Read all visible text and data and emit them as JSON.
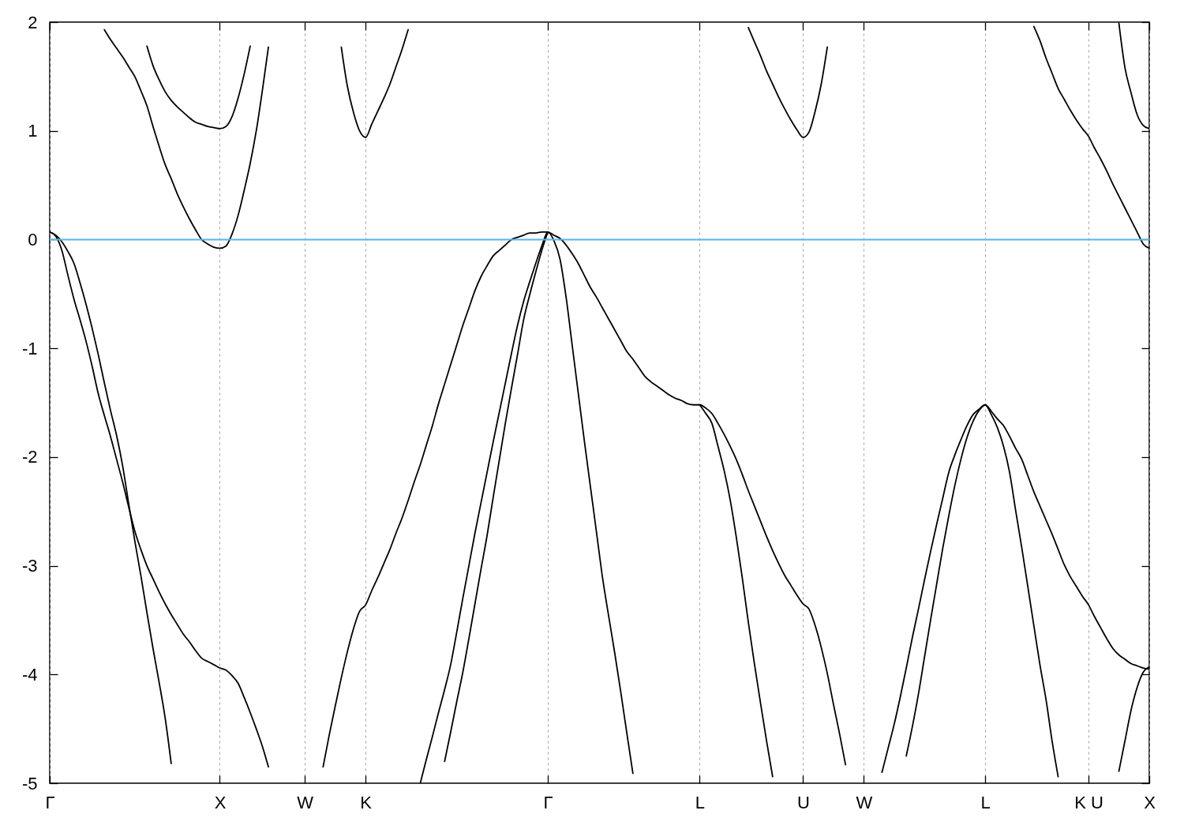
{
  "chart_data": {
    "type": "line",
    "categories": [
      "Γ",
      null,
      null,
      null,
      null,
      null,
      null,
      null,
      null,
      null,
      null,
      null,
      null,
      null,
      null,
      null,
      null,
      null,
      null,
      null,
      null,
      null,
      null,
      null,
      null,
      null,
      null,
      null,
      "X",
      null,
      null,
      null,
      null,
      null,
      null,
      null,
      null,
      null,
      null,
      null,
      null,
      null,
      "W",
      null,
      null,
      null,
      null,
      null,
      null,
      null,
      null,
      null,
      "K",
      null,
      null,
      null,
      null,
      null,
      null,
      null,
      null,
      null,
      null,
      null,
      null,
      null,
      null,
      null,
      null,
      null,
      null,
      null,
      null,
      null,
      null,
      null,
      null,
      null,
      null,
      null,
      null,
      null,
      "Γ",
      null,
      null,
      null,
      null,
      null,
      null,
      null,
      null,
      null,
      null,
      null,
      null,
      null,
      null,
      null,
      null,
      null,
      null,
      null,
      null,
      null,
      null,
      null,
      null,
      "L",
      null,
      null,
      null,
      null,
      null,
      null,
      null,
      null,
      null,
      null,
      null,
      null,
      null,
      null,
      null,
      null,
      "U",
      null,
      null,
      null,
      null,
      null,
      null,
      null,
      null,
      null,
      "W",
      null,
      null,
      null,
      null,
      null,
      null,
      null,
      null,
      null,
      null,
      null,
      null,
      null,
      null,
      null,
      null,
      null,
      null,
      null,
      "L",
      null,
      null,
      null,
      null,
      null,
      null,
      null,
      null,
      null,
      null,
      null,
      null,
      null,
      null,
      null,
      null,
      "K U",
      null,
      null,
      null,
      null,
      null,
      null,
      null,
      null,
      null,
      "X"
    ],
    "ylim": [
      -5,
      2
    ],
    "yticks": [
      -5,
      -4,
      -3,
      -2,
      -1,
      0,
      1,
      2
    ],
    "grid": "x",
    "ref_lines": [
      {
        "axis": "y",
        "value": 0,
        "color": "#56b4e9"
      }
    ],
    "series": [
      {
        "color": "#000000",
        "values": [
          null,
          null,
          null,
          null,
          null,
          null,
          null,
          null,
          null,
          1.93,
          1.84,
          1.76,
          1.68,
          1.59,
          1.5,
          1.37,
          1.23,
          1.04,
          0.86,
          0.69,
          0.56,
          0.42,
          0.3,
          0.19,
          0.09,
          0.0,
          -0.04,
          -0.07,
          -0.08,
          -0.06,
          0.05,
          0.22,
          0.45,
          0.7,
          1.0,
          1.37,
          1.77,
          null,
          null,
          null,
          null,
          null,
          null,
          null,
          null,
          null,
          null,
          null,
          1.77,
          1.41,
          1.17,
          1.0,
          0.94,
          1.06,
          1.18,
          1.3,
          1.43,
          1.59,
          1.75,
          1.93,
          null,
          null,
          null,
          null,
          null,
          null,
          null,
          null,
          null,
          null,
          null,
          null,
          null,
          null,
          null,
          null,
          null,
          null,
          null,
          null,
          null,
          null,
          null,
          null,
          null,
          null,
          null,
          null,
          null,
          null,
          null,
          null,
          null,
          null,
          null,
          null,
          null,
          null,
          null,
          null,
          null,
          null,
          null,
          null,
          null,
          null,
          null,
          null,
          null,
          null,
          null,
          null,
          null,
          null,
          null,
          1.95,
          1.82,
          1.69,
          1.55,
          1.43,
          1.31,
          1.2,
          1.1,
          1.01,
          0.94,
          0.99,
          1.18,
          1.43,
          1.77,
          null,
          null,
          null,
          null,
          null,
          null,
          null,
          null,
          null,
          null,
          null,
          null,
          null,
          null,
          null,
          null,
          null,
          null,
          null,
          null,
          null,
          null,
          null,
          null,
          null,
          null,
          null,
          null,
          null,
          null,
          null,
          null,
          null,
          1.96,
          1.83,
          1.67,
          1.53,
          1.39,
          1.29,
          1.19,
          1.1,
          1.02,
          0.95,
          0.84,
          0.74,
          0.63,
          0.51,
          0.4,
          0.29,
          0.18,
          0.07,
          -0.04,
          -0.08
        ]
      },
      {
        "color": "#000000",
        "values": [
          null,
          null,
          null,
          null,
          null,
          null,
          null,
          null,
          null,
          null,
          null,
          null,
          null,
          null,
          null,
          null,
          1.78,
          1.6,
          1.47,
          1.36,
          1.28,
          1.22,
          1.17,
          1.12,
          1.08,
          1.06,
          1.04,
          1.03,
          1.02,
          1.04,
          1.13,
          1.3,
          1.52,
          1.78,
          null,
          null,
          null,
          null,
          null,
          null,
          null,
          null,
          null,
          null,
          null,
          null,
          null,
          null,
          null,
          null,
          null,
          null,
          null,
          null,
          null,
          null,
          null,
          null,
          null,
          null,
          null,
          null,
          null,
          null,
          null,
          null,
          null,
          null,
          null,
          null,
          null,
          null,
          null,
          null,
          null,
          null,
          null,
          null,
          null,
          null,
          null,
          null,
          null,
          null,
          null,
          null,
          null,
          null,
          null,
          null,
          null,
          null,
          null,
          null,
          null,
          null,
          null,
          null,
          null,
          null,
          null,
          null,
          null,
          null,
          null,
          null,
          null,
          null,
          null,
          null,
          null,
          null,
          null,
          null,
          null,
          null,
          null,
          null,
          null,
          null,
          null,
          null,
          null,
          null,
          null,
          null,
          null,
          null,
          null,
          null,
          null,
          null,
          null,
          null,
          null,
          null,
          null,
          null,
          null,
          null,
          null,
          null,
          null,
          null,
          null,
          null,
          null,
          null,
          null,
          null,
          null,
          null,
          null,
          null,
          null,
          null,
          null,
          null,
          null,
          null,
          null,
          null,
          null,
          null,
          null,
          null,
          null,
          null,
          null,
          null,
          null,
          null,
          null,
          null,
          null,
          null,
          null,
          null,
          null,
          null,
          null,
          null
        ]
      },
      {
        "color": "#000000",
        "values": [
          0.07,
          0.03,
          -0.1,
          -0.33,
          -0.55,
          -0.74,
          -0.94,
          -1.17,
          -1.42,
          -1.62,
          -1.81,
          -2.02,
          -2.23,
          -2.46,
          -2.68,
          -2.85,
          -3.0,
          -3.12,
          -3.24,
          -3.35,
          -3.45,
          -3.54,
          -3.63,
          -3.7,
          -3.78,
          -3.85,
          -3.88,
          -3.91,
          -3.94,
          -3.96,
          -4.01,
          -4.08,
          -4.21,
          -4.35,
          -4.5,
          -4.66,
          -4.85,
          null,
          null,
          null,
          null,
          null,
          null,
          null,
          null,
          -4.85,
          -4.56,
          -4.29,
          -4.03,
          -3.79,
          -3.58,
          -3.42,
          -3.36,
          -3.23,
          -3.11,
          -2.98,
          -2.85,
          -2.7,
          -2.56,
          -2.4,
          -2.23,
          -2.07,
          -1.89,
          -1.71,
          -1.51,
          -1.33,
          -1.15,
          -0.97,
          -0.79,
          -0.63,
          -0.47,
          -0.34,
          -0.24,
          -0.15,
          -0.1,
          -0.05,
          0.0,
          0.02,
          0.04,
          0.06,
          0.06,
          0.07,
          0.07,
          0.04,
          0.01,
          -0.05,
          -0.13,
          -0.22,
          -0.33,
          -0.44,
          -0.53,
          -0.63,
          -0.73,
          -0.83,
          -0.93,
          -1.03,
          -1.1,
          -1.18,
          -1.26,
          -1.31,
          -1.35,
          -1.39,
          -1.43,
          -1.46,
          -1.48,
          -1.51,
          -1.52,
          -1.52,
          -1.55,
          -1.6,
          -1.69,
          -1.79,
          -1.9,
          -2.02,
          -2.16,
          -2.31,
          -2.45,
          -2.59,
          -2.73,
          -2.86,
          -2.98,
          -3.09,
          -3.18,
          -3.27,
          -3.35,
          -3.4,
          -3.55,
          -3.75,
          -3.99,
          -4.27,
          -4.54,
          -4.83,
          null,
          null,
          null,
          null,
          null,
          -4.9,
          -4.68,
          -4.46,
          -4.21,
          -3.94,
          -3.66,
          -3.4,
          -3.13,
          -2.87,
          -2.62,
          -2.38,
          -2.14,
          -1.98,
          -1.84,
          -1.71,
          -1.61,
          -1.56,
          -1.52,
          -1.58,
          -1.65,
          -1.71,
          -1.81,
          -1.92,
          -2.02,
          -2.17,
          -2.32,
          -2.45,
          -2.58,
          -2.71,
          -2.85,
          -2.99,
          -3.1,
          -3.19,
          -3.28,
          -3.36,
          -3.47,
          -3.57,
          -3.67,
          -3.76,
          -3.82,
          -3.86,
          -3.9,
          -3.92,
          -3.94,
          -3.95
        ]
      },
      {
        "color": "#000000",
        "values": [
          0.07,
          0.04,
          -0.02,
          -0.11,
          -0.22,
          -0.4,
          -0.6,
          -0.82,
          -1.06,
          -1.32,
          -1.57,
          -1.8,
          -2.08,
          -2.43,
          -2.77,
          -3.09,
          -3.43,
          -3.76,
          -4.07,
          -4.4,
          -4.82,
          null,
          null,
          null,
          null,
          null,
          null,
          null,
          null,
          null,
          null,
          null,
          null,
          null,
          null,
          null,
          null,
          null,
          null,
          null,
          null,
          null,
          null,
          null,
          null,
          null,
          null,
          null,
          null,
          null,
          null,
          null,
          null,
          null,
          null,
          null,
          null,
          null,
          null,
          null,
          null,
          -5.0,
          -4.78,
          -4.57,
          -4.35,
          -4.14,
          -3.91,
          -3.61,
          -3.3,
          -3.0,
          -2.7,
          -2.42,
          -2.14,
          -1.86,
          -1.59,
          -1.32,
          -1.05,
          -0.79,
          -0.57,
          -0.39,
          -0.22,
          -0.06,
          0.07,
          -0.01,
          -0.18,
          -0.53,
          -0.97,
          -1.41,
          -1.85,
          -2.27,
          -2.69,
          -3.11,
          -3.46,
          -3.8,
          -4.16,
          -4.54,
          -4.91,
          null,
          null,
          null,
          null,
          null,
          null,
          null,
          null,
          null,
          null,
          -1.52,
          -1.6,
          -1.69,
          -1.9,
          -2.12,
          -2.39,
          -2.73,
          -3.11,
          -3.52,
          -3.9,
          -4.26,
          -4.61,
          -4.94,
          null,
          null,
          null,
          null,
          null,
          null,
          null,
          null,
          null,
          null,
          null,
          null,
          null,
          null,
          null,
          null,
          null,
          null,
          null,
          null,
          null,
          -4.75,
          -4.48,
          -4.18,
          -3.84,
          -3.5,
          -3.17,
          -2.84,
          -2.54,
          -2.26,
          -2.02,
          -1.82,
          -1.67,
          -1.57,
          -1.52,
          -1.61,
          -1.73,
          -1.9,
          -2.14,
          -2.49,
          -2.83,
          -3.19,
          -3.55,
          -3.91,
          -4.23,
          -4.61,
          -4.94,
          null,
          null,
          null,
          null,
          null,
          null,
          null,
          null,
          null,
          1.99,
          1.58,
          1.35,
          1.15,
          1.05,
          1.02
        ]
      },
      {
        "color": "#000000",
        "values": [
          null,
          null,
          null,
          null,
          null,
          null,
          null,
          null,
          null,
          null,
          null,
          null,
          null,
          null,
          null,
          null,
          null,
          null,
          null,
          null,
          null,
          null,
          null,
          null,
          null,
          null,
          null,
          null,
          null,
          null,
          null,
          null,
          null,
          null,
          null,
          null,
          null,
          null,
          null,
          null,
          null,
          null,
          null,
          null,
          null,
          null,
          null,
          null,
          null,
          null,
          null,
          null,
          null,
          null,
          null,
          null,
          null,
          null,
          null,
          null,
          null,
          null,
          null,
          null,
          null,
          -4.8,
          -4.53,
          -4.25,
          -3.98,
          -3.67,
          -3.35,
          -3.03,
          -2.72,
          -2.37,
          -2.03,
          -1.69,
          -1.37,
          -1.06,
          -0.74,
          -0.51,
          -0.3,
          -0.1,
          0.07,
          null,
          null,
          null,
          null,
          null,
          null,
          null,
          null,
          null,
          null,
          null,
          null,
          null,
          null,
          null,
          null,
          null,
          null,
          null,
          null,
          null,
          null,
          null,
          null,
          null,
          null,
          null,
          null,
          null,
          null,
          null,
          null,
          null,
          null,
          null,
          null,
          null,
          null,
          null,
          null,
          null,
          null,
          null,
          null,
          null,
          null,
          null,
          null,
          null,
          null,
          null,
          null,
          null,
          null,
          null,
          null,
          null,
          null,
          null,
          null,
          null,
          null,
          null,
          null,
          null,
          null,
          null,
          null,
          null,
          null,
          null,
          null,
          null,
          null,
          null,
          null,
          null,
          null,
          null,
          null,
          null,
          null,
          null,
          null,
          null,
          null,
          null,
          null,
          null,
          null,
          null,
          null,
          null,
          -4.89,
          -4.61,
          -4.33,
          -4.12,
          -3.98,
          -3.93
        ]
      }
    ]
  }
}
